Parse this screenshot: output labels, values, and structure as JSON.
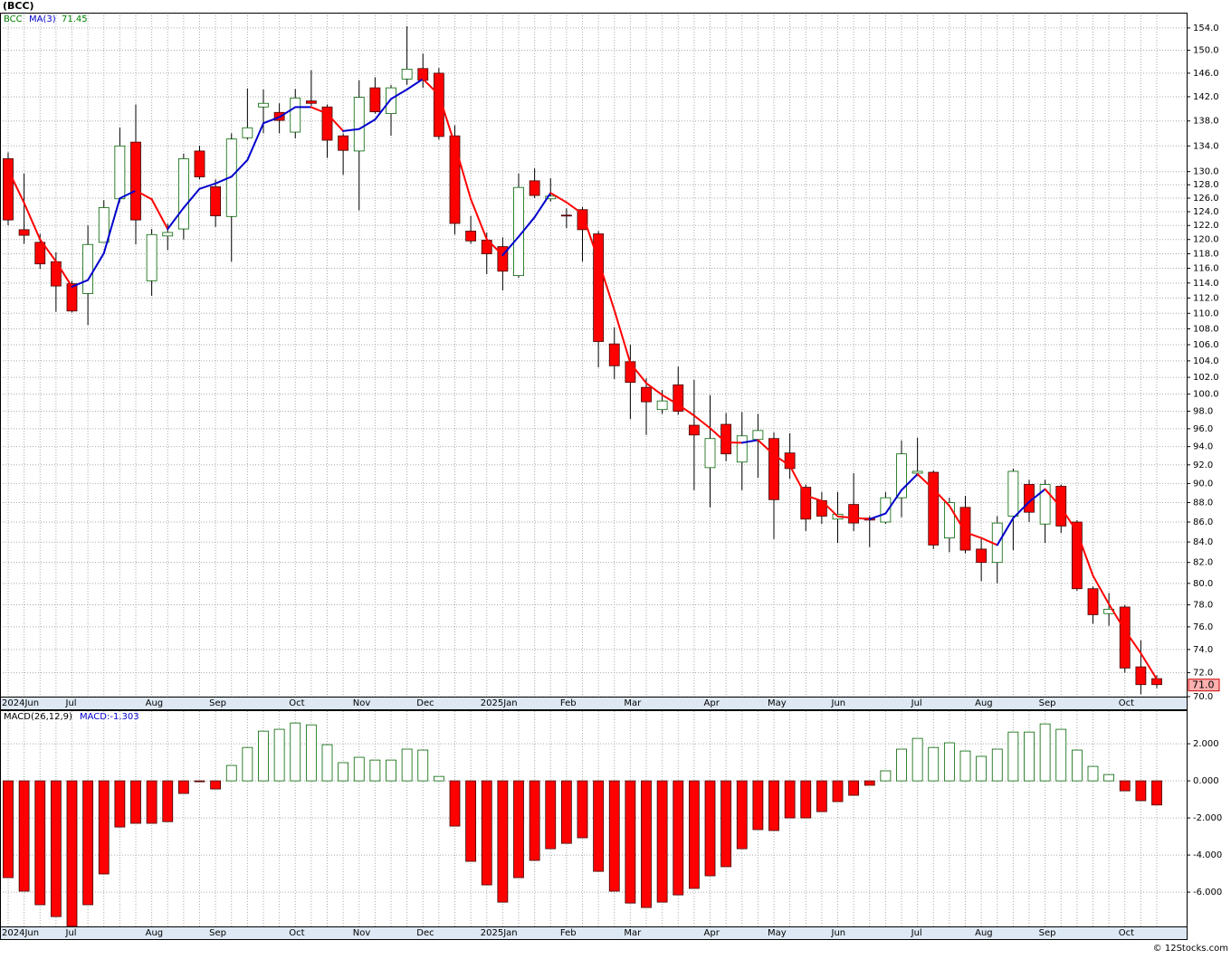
{
  "footer": "© 12Stocks.com",
  "chart_data": [
    {
      "type": "candlestick",
      "title": "(BCC)",
      "symbol": "BCC",
      "log_scale": true,
      "grid": true,
      "categories": [
        "2024Jun",
        null,
        null,
        null,
        "Jul",
        null,
        null,
        null,
        null,
        "Aug",
        null,
        null,
        null,
        "Sep",
        null,
        null,
        null,
        null,
        "Oct",
        null,
        null,
        null,
        "Nov",
        null,
        null,
        null,
        "Dec",
        null,
        null,
        null,
        "2025Jan",
        null,
        null,
        null,
        null,
        "Feb",
        null,
        null,
        null,
        "Mar",
        null,
        null,
        null,
        null,
        "Apr",
        null,
        null,
        null,
        "May",
        null,
        null,
        null,
        "Jun",
        null,
        null,
        null,
        null,
        "Jul",
        null,
        null,
        null,
        "Aug",
        null,
        null,
        null,
        "Sep",
        null,
        null,
        null,
        null,
        "Oct",
        null,
        null
      ],
      "open": [
        132.0,
        121.4,
        119.6,
        116.9,
        113.9,
        112.6,
        119.6,
        125.9,
        134.6,
        114.3,
        120.5,
        121.5,
        133.2,
        127.7,
        123.3,
        135.3,
        140.3,
        139.4,
        136.2,
        141.3,
        140.3,
        135.6,
        133.2,
        143.5,
        139.2,
        145.0,
        146.8,
        146.0,
        135.6,
        121.2,
        119.9,
        119.0,
        115.0,
        128.6,
        125.9,
        123.5,
        124.3,
        120.8,
        106.1,
        103.9,
        100.8,
        98.2,
        101.1,
        96.4,
        91.7,
        96.5,
        92.3,
        94.8,
        94.9,
        93.3,
        89.6,
        88.2,
        86.3,
        87.8,
        86.4,
        86.0,
        88.5,
        91.1,
        91.2,
        84.4,
        87.5,
        83.3,
        82.0,
        86.6,
        89.9,
        85.8,
        89.7,
        86.0,
        79.5,
        77.2,
        77.8,
        72.5,
        71.5
      ],
      "high": [
        133.0,
        129.7,
        120.8,
        118.2,
        114.3,
        122.0,
        125.7,
        136.9,
        140.7,
        121.5,
        122.3,
        132.8,
        134.0,
        128.8,
        136.0,
        143.4,
        143.2,
        140.9,
        143.3,
        146.5,
        140.7,
        136.0,
        144.8,
        145.3,
        144.0,
        154.3,
        149.4,
        146.9,
        137.3,
        123.4,
        121.0,
        120.3,
        129.7,
        130.5,
        129.0,
        124.5,
        124.7,
        121.2,
        108.2,
        106.0,
        101.9,
        100.5,
        103.3,
        101.7,
        99.9,
        97.8,
        97.9,
        97.7,
        95.6,
        95.5,
        89.9,
        89.1,
        89.1,
        91.1,
        86.6,
        89.1,
        94.7,
        95.0,
        91.4,
        88.5,
        88.7,
        84.3,
        86.6,
        91.6,
        90.4,
        90.4,
        89.9,
        86.2,
        79.7,
        79.1,
        78.0,
        74.8,
        71.8
      ],
      "low": [
        122.0,
        119.4,
        115.9,
        110.2,
        110.1,
        108.5,
        119.6,
        125.4,
        119.3,
        112.3,
        118.5,
        120.0,
        128.8,
        121.8,
        116.9,
        135.0,
        136.0,
        136.0,
        135.2,
        140.5,
        132.1,
        129.5,
        124.2,
        139.2,
        135.6,
        144.0,
        143.5,
        135.0,
        120.7,
        119.4,
        115.2,
        113.0,
        114.7,
        126.0,
        125.5,
        121.6,
        116.9,
        103.2,
        101.8,
        97.1,
        95.3,
        97.7,
        97.6,
        89.3,
        87.5,
        92.4,
        89.3,
        90.6,
        84.3,
        90.5,
        85.1,
        85.8,
        83.9,
        85.1,
        83.5,
        85.8,
        86.5,
        90.8,
        83.3,
        83.0,
        82.9,
        80.2,
        80.0,
        83.2,
        86.0,
        83.9,
        84.9,
        79.3,
        76.3,
        76.1,
        72.0,
        70.2,
        70.7
      ],
      "close": [
        122.8,
        120.6,
        116.6,
        113.6,
        110.3,
        119.3,
        124.6,
        134.0,
        122.8,
        120.7,
        121.0,
        132.0,
        129.2,
        123.4,
        135.1,
        136.9,
        140.9,
        138.1,
        141.8,
        140.9,
        134.9,
        133.3,
        141.9,
        139.5,
        143.5,
        146.7,
        144.8,
        135.5,
        122.3,
        119.8,
        118.0,
        115.6,
        127.6,
        126.4,
        126.3,
        123.4,
        121.4,
        106.4,
        103.4,
        101.4,
        99.1,
        99.2,
        98.0,
        95.3,
        94.9,
        93.2,
        95.2,
        95.8,
        88.3,
        91.6,
        86.3,
        86.6,
        86.8,
        85.9,
        86.2,
        88.5,
        93.2,
        91.3,
        83.7,
        88.0,
        83.2,
        82.0,
        85.9,
        91.3,
        87.0,
        89.9,
        85.6,
        79.5,
        77.1,
        77.6,
        72.4,
        71.0,
        71.0
      ],
      "last_label": "71.0",
      "up_color": "#ffffff",
      "up_edge": "#006400",
      "down_color": "#ff0000",
      "down_edge": "#400000",
      "ma": {
        "name": "MA(3)",
        "up_color": "#0000cc",
        "down_color": "#ff0000",
        "values": [
          130.3,
          125.3,
          120.0,
          116.93,
          113.5,
          114.4,
          118.07,
          125.97,
          127.13,
          125.83,
          121.5,
          124.57,
          127.4,
          128.2,
          129.23,
          131.8,
          137.63,
          138.63,
          140.27,
          140.27,
          139.2,
          136.37,
          136.7,
          138.23,
          141.63,
          143.23,
          145.0,
          142.33,
          134.2,
          125.87,
          120.03,
          117.8,
          120.4,
          123.2,
          126.77,
          125.37,
          123.7,
          117.07,
          110.4,
          103.73,
          101.3,
          99.9,
          98.77,
          97.5,
          96.07,
          94.47,
          94.43,
          94.73,
          93.1,
          91.9,
          88.73,
          88.17,
          86.57,
          86.43,
          86.3,
          86.87,
          89.3,
          91.0,
          89.4,
          87.67,
          84.97,
          84.4,
          83.7,
          86.4,
          88.07,
          89.4,
          87.5,
          85.0,
          80.73,
          78.07,
          75.7,
          73.67,
          71.45
        ]
      },
      "ylim": [
        70,
        156.8
      ],
      "yticks": [
        {
          "value": 154,
          "label": "154.0"
        },
        {
          "value": 150,
          "label": "150.0"
        },
        {
          "value": 146,
          "label": "146.0"
        },
        {
          "value": 142,
          "label": "142.0"
        },
        {
          "value": 138,
          "label": "138.0"
        },
        {
          "value": 134,
          "label": "134.0"
        },
        {
          "value": 130,
          "label": "130.0"
        },
        {
          "value": 128,
          "label": "128.0"
        },
        {
          "value": 126,
          "label": "126.0"
        },
        {
          "value": 124,
          "label": "124.0"
        },
        {
          "value": 122,
          "label": "122.0"
        },
        {
          "value": 120,
          "label": "120.0"
        },
        {
          "value": 118,
          "label": "118.0"
        },
        {
          "value": 116,
          "label": "116.0"
        },
        {
          "value": 114,
          "label": "114.0"
        },
        {
          "value": 112,
          "label": "112.0"
        },
        {
          "value": 110,
          "label": "110.0"
        },
        {
          "value": 108,
          "label": "108.0"
        },
        {
          "value": 106,
          "label": "106.0"
        },
        {
          "value": 104,
          "label": "104.0"
        },
        {
          "value": 102,
          "label": "102.0"
        },
        {
          "value": 100,
          "label": "100.0"
        },
        {
          "value": 98,
          "label": "98.0"
        },
        {
          "value": 96,
          "label": "96.0"
        },
        {
          "value": 94,
          "label": "94.0"
        },
        {
          "value": 92,
          "label": "92.0"
        },
        {
          "value": 90,
          "label": "90.0"
        },
        {
          "value": 88,
          "label": "88.0"
        },
        {
          "value": 86,
          "label": "86.0"
        },
        {
          "value": 84,
          "label": "84.0"
        },
        {
          "value": 82,
          "label": "82.0"
        },
        {
          "value": 80,
          "label": "80.0"
        },
        {
          "value": 78,
          "label": "78.0"
        },
        {
          "value": 76,
          "label": "76.0"
        },
        {
          "value": 74,
          "label": "74.0"
        },
        {
          "value": 72,
          "label": "72.0"
        },
        {
          "value": 70,
          "label": "70.0"
        }
      ]
    },
    {
      "type": "bar",
      "name": "MACD(26,12,9)",
      "legend_value": "MACD:-1.303",
      "grid": true,
      "categories": [
        "2024Jun",
        null,
        null,
        null,
        "Jul",
        null,
        null,
        null,
        null,
        "Aug",
        null,
        null,
        null,
        "Sep",
        null,
        null,
        null,
        null,
        "Oct",
        null,
        null,
        null,
        "Nov",
        null,
        null,
        null,
        "Dec",
        null,
        null,
        null,
        "2025Jan",
        null,
        null,
        null,
        null,
        "Feb",
        null,
        null,
        null,
        "Mar",
        null,
        null,
        null,
        null,
        "Apr",
        null,
        null,
        null,
        "May",
        null,
        null,
        null,
        "Jun",
        null,
        null,
        null,
        null,
        "Jul",
        null,
        null,
        null,
        "Aug",
        null,
        null,
        null,
        "Sep",
        null,
        null,
        null,
        null,
        "Oct",
        null,
        null
      ],
      "values": [
        -5.22,
        -5.95,
        -6.68,
        -7.32,
        -7.9,
        -6.68,
        -5.02,
        -2.49,
        -2.29,
        -2.29,
        -2.2,
        -0.68,
        -0.05,
        -0.44,
        0.83,
        1.8,
        2.68,
        2.78,
        3.12,
        3.02,
        1.95,
        0.98,
        1.27,
        1.12,
        1.12,
        1.71,
        1.66,
        0.24,
        -2.44,
        -4.34,
        -5.61,
        -6.54,
        -5.22,
        -4.29,
        -3.66,
        -3.37,
        -3.07,
        -4.88,
        -5.95,
        -6.59,
        -6.83,
        -6.54,
        -6.15,
        -5.8,
        -5.12,
        -4.63,
        -3.66,
        -2.63,
        -2.68,
        -2.0,
        -2.0,
        -1.66,
        -1.12,
        -0.78,
        -0.24,
        0.54,
        1.71,
        2.29,
        1.8,
        2.05,
        1.61,
        1.32,
        1.71,
        2.63,
        2.63,
        3.07,
        2.78,
        1.66,
        0.78,
        0.34,
        -0.54,
        -1.07,
        -1.303
      ],
      "pos_color": "#ffffff",
      "pos_edge": "#006400",
      "neg_color": "#ff0000",
      "neg_edge": "#400000",
      "ylim": [
        -7.85,
        3.76
      ],
      "yticks": [
        {
          "value": 2,
          "label": "2.000"
        },
        {
          "value": 0,
          "label": "0.000"
        },
        {
          "value": -2,
          "label": "-2.000"
        },
        {
          "value": -4,
          "label": "-4.000"
        },
        {
          "value": -6,
          "label": "-6.000"
        }
      ]
    }
  ]
}
